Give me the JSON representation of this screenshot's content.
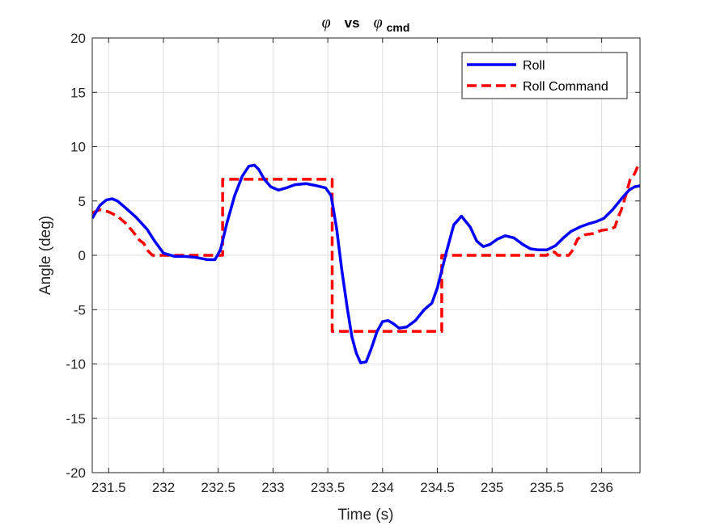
{
  "chart_data": {
    "type": "line",
    "title": {
      "sym1": "φ",
      "vs": "vs",
      "sym2": "φ",
      "sub": "cmd"
    },
    "xlabel": "Time (s)",
    "ylabel": "Angle (deg)",
    "xlim": [
      231.35,
      236.35
    ],
    "ylim": [
      -20,
      20
    ],
    "xticks": [
      231.5,
      232,
      232.5,
      233,
      233.5,
      234,
      234.5,
      235,
      235.5,
      236
    ],
    "xtick_labels": [
      "231.5",
      "232",
      "232.5",
      "233",
      "233.5",
      "234",
      "234.5",
      "235",
      "235.5",
      "236"
    ],
    "yticks": [
      -20,
      -15,
      -10,
      -5,
      0,
      5,
      10,
      15,
      20
    ],
    "ytick_labels": [
      "-20",
      "-15",
      "-10",
      "-5",
      "0",
      "5",
      "10",
      "15",
      "20"
    ],
    "grid": true,
    "legend_position": "top-right",
    "series": [
      {
        "name": "Roll",
        "color": "#0000ff",
        "style": "solid",
        "x": [
          231.35,
          231.42,
          231.48,
          231.53,
          231.58,
          231.65,
          231.75,
          231.85,
          231.92,
          232.0,
          232.1,
          232.2,
          232.3,
          232.4,
          232.47,
          232.52,
          232.58,
          232.65,
          232.72,
          232.78,
          232.83,
          232.87,
          232.92,
          232.98,
          233.05,
          233.12,
          233.2,
          233.3,
          233.4,
          233.48,
          233.53,
          233.58,
          233.63,
          233.68,
          233.72,
          233.76,
          233.8,
          233.85,
          233.9,
          233.95,
          234.0,
          234.05,
          234.1,
          234.15,
          234.22,
          234.3,
          234.38,
          234.45,
          234.5,
          234.58,
          234.65,
          234.72,
          234.8,
          234.86,
          234.92,
          234.98,
          235.05,
          235.12,
          235.2,
          235.28,
          235.35,
          235.42,
          235.5,
          235.58,
          235.65,
          235.72,
          235.8,
          235.88,
          235.95,
          236.02,
          236.1,
          236.18,
          236.25,
          236.3,
          236.35
        ],
        "y": [
          3.4,
          4.6,
          5.1,
          5.2,
          5.0,
          4.4,
          3.5,
          2.4,
          1.3,
          0.2,
          -0.1,
          -0.1,
          -0.2,
          -0.4,
          -0.4,
          0.5,
          3.0,
          5.5,
          7.3,
          8.2,
          8.3,
          7.9,
          7.0,
          6.3,
          6.0,
          6.2,
          6.5,
          6.6,
          6.4,
          6.2,
          5.5,
          2.5,
          -1.5,
          -5.0,
          -7.5,
          -9.0,
          -9.9,
          -9.8,
          -8.5,
          -7.0,
          -6.1,
          -6.0,
          -6.3,
          -6.7,
          -6.6,
          -6.0,
          -5.0,
          -4.4,
          -3.0,
          0.2,
          2.8,
          3.6,
          2.6,
          1.3,
          0.8,
          1.0,
          1.5,
          1.8,
          1.6,
          1.0,
          0.6,
          0.5,
          0.5,
          0.9,
          1.6,
          2.2,
          2.6,
          2.9,
          3.1,
          3.4,
          4.2,
          5.2,
          6.0,
          6.3,
          6.4
        ]
      },
      {
        "name": "Roll Command",
        "color": "#ff0000",
        "style": "dashed",
        "x": [
          231.35,
          231.42,
          231.5,
          231.58,
          231.65,
          231.72,
          231.78,
          231.82,
          231.86,
          231.9,
          232.0,
          232.25,
          232.5,
          232.54,
          232.54,
          233.0,
          233.54,
          233.54,
          234.0,
          234.54,
          234.54,
          235.0,
          235.5,
          235.53,
          235.57,
          235.6,
          235.65,
          235.7,
          235.73,
          235.78,
          235.85,
          235.92,
          236.0,
          236.08,
          236.12,
          236.15,
          236.18,
          236.22,
          236.26,
          236.3,
          236.33,
          236.35
        ],
        "y": [
          3.9,
          4.2,
          4.0,
          3.6,
          3.0,
          2.2,
          1.4,
          1.1,
          0.4,
          0.0,
          0.0,
          0.0,
          0.0,
          0.0,
          7.0,
          7.0,
          7.0,
          -7.0,
          -7.0,
          -7.0,
          0.0,
          0.0,
          0.0,
          0.3,
          0.3,
          0.0,
          0.0,
          0.0,
          0.4,
          1.5,
          1.9,
          2.0,
          2.3,
          2.4,
          2.6,
          3.5,
          4.2,
          5.5,
          7.0,
          7.5,
          8.2,
          8.5
        ]
      }
    ]
  }
}
